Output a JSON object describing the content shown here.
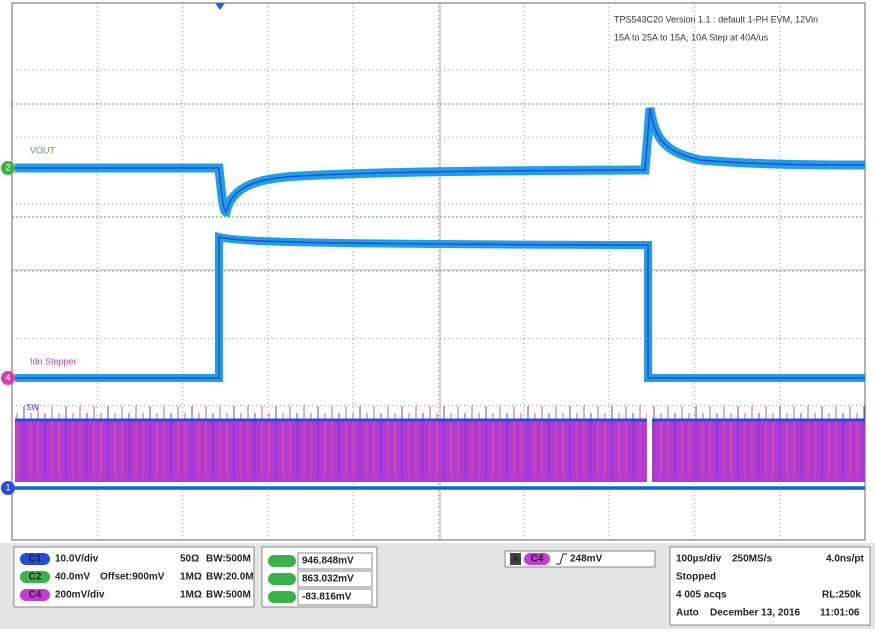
{
  "header": {
    "line1": "TPS543C20 Version 1.1 : default 1-PH EVM, 12Vin",
    "line2": "15A to 25A to 15A, 10A Step at 40A/us"
  },
  "traces": {
    "vout": "VOUT",
    "stepper": "Idn Stepper",
    "sw": "SW"
  },
  "markers": {
    "c2": "2",
    "c4": "4",
    "c1": "1"
  },
  "channels": [
    {
      "badge": "C1",
      "scale": "10.0V/div",
      "offset": "",
      "coupling": "50Ω",
      "bandwidth": "BW:500M"
    },
    {
      "badge": "C2",
      "scale": "40.0mV",
      "offset": "Offset:900mV",
      "coupling": "1MΩ",
      "bandwidth": "BW:20.0M"
    },
    {
      "badge": "C4",
      "scale": "200mV/div",
      "offset": "",
      "coupling": "1MΩ",
      "bandwidth": "BW:500M"
    }
  ],
  "measurements": [
    "946.848mV",
    "863.032mV",
    "-83.816mV"
  ],
  "trigger": {
    "mode": "A",
    "source": "C4",
    "level": "248mV"
  },
  "timebase": {
    "scale": "100µs/div",
    "rate": "250MS/s",
    "resolution": "4.0ns/pt",
    "state": "Stopped",
    "acqs": "4 005 acqs",
    "record": "RL:250k",
    "trigger_mode": "Auto",
    "date": "December 13, 2016",
    "time": "11:01:06"
  }
}
